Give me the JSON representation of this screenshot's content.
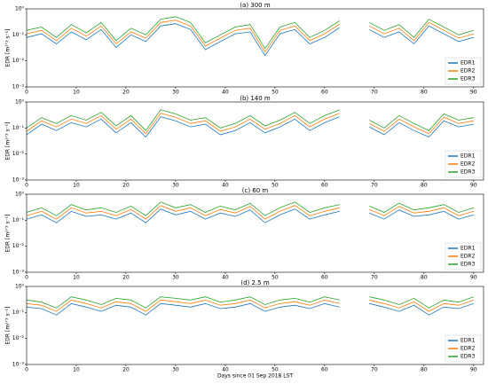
{
  "chart_data": [
    {
      "type": "line",
      "title": "(a) 300 m",
      "ylabel": "EDR [m²ᐟ³ s⁻¹]",
      "log_scale": true,
      "legend": "lower right",
      "xlim": [
        0,
        92
      ],
      "xticks": [
        0,
        10,
        20,
        30,
        40,
        50,
        60,
        70,
        80,
        90
      ],
      "ylim": [
        0.001,
        1
      ],
      "yticks": [
        {
          "value": 1,
          "label": "10⁰"
        },
        {
          "value": 0.1,
          "label": "10⁻¹"
        },
        {
          "value": 0.01,
          "label": "10⁻²"
        },
        {
          "value": 0.001,
          "label": "10⁻³"
        }
      ],
      "x": [
        0,
        3,
        6,
        9,
        12,
        15,
        18,
        21,
        24,
        27,
        30,
        33,
        36,
        39,
        42,
        45,
        48,
        51,
        54,
        57,
        60,
        63,
        66,
        69,
        72,
        75,
        78,
        81,
        84,
        87,
        90
      ],
      "series": [
        {
          "name": "EDR1",
          "color": "#1f77b4",
          "values": [
            0.08,
            0.11,
            0.045,
            0.13,
            0.065,
            0.16,
            0.033,
            0.1,
            0.055,
            0.22,
            0.27,
            0.16,
            0.027,
            0.055,
            0.11,
            0.13,
            0.016,
            0.11,
            0.16,
            0.045,
            0.08,
            0.19,
            null,
            0.16,
            0.08,
            0.13,
            0.045,
            0.22,
            0.11,
            0.055,
            0.08
          ]
        },
        {
          "name": "EDR2",
          "color": "#ff7f0e",
          "values": [
            0.11,
            0.15,
            0.06,
            0.18,
            0.09,
            0.22,
            0.045,
            0.13,
            0.075,
            0.3,
            0.37,
            0.22,
            0.037,
            0.075,
            0.15,
            0.18,
            0.022,
            0.15,
            0.22,
            0.06,
            0.11,
            0.26,
            null,
            0.22,
            0.11,
            0.18,
            0.06,
            0.3,
            0.15,
            0.075,
            0.11
          ]
        },
        {
          "name": "EDR3",
          "color": "#2ca02c",
          "values": [
            0.15,
            0.2,
            0.08,
            0.25,
            0.12,
            0.3,
            0.06,
            0.18,
            0.1,
            0.4,
            0.5,
            0.3,
            0.05,
            0.1,
            0.2,
            0.25,
            0.03,
            0.2,
            0.3,
            0.08,
            0.15,
            0.35,
            null,
            0.3,
            0.15,
            0.25,
            0.08,
            0.4,
            0.2,
            0.1,
            0.15
          ]
        }
      ]
    },
    {
      "type": "line",
      "title": "(b) 140 m",
      "ylabel": "EDR [m²ᐟ³ s⁻¹]",
      "log_scale": true,
      "legend": "lower right",
      "xlim": [
        0,
        92
      ],
      "xticks": [
        0,
        10,
        20,
        30,
        40,
        50,
        60,
        70,
        80,
        90
      ],
      "ylim": [
        0.001,
        1
      ],
      "yticks": [
        {
          "value": 1,
          "label": "10⁰"
        },
        {
          "value": 0.1,
          "label": "10⁻¹"
        },
        {
          "value": 0.01,
          "label": "10⁻²"
        },
        {
          "value": 0.001,
          "label": "10⁻³"
        }
      ],
      "x": [
        0,
        3,
        6,
        9,
        12,
        15,
        18,
        21,
        24,
        27,
        30,
        33,
        36,
        39,
        42,
        45,
        48,
        51,
        54,
        57,
        60,
        63,
        66,
        69,
        72,
        75,
        78,
        81,
        84,
        87,
        90
      ],
      "series": [
        {
          "name": "EDR1",
          "color": "#1f77b4",
          "values": [
            0.055,
            0.14,
            0.08,
            0.16,
            0.11,
            0.22,
            0.065,
            0.16,
            0.045,
            0.27,
            0.19,
            0.11,
            0.14,
            0.055,
            0.08,
            0.16,
            0.065,
            0.11,
            0.22,
            0.08,
            0.16,
            0.27,
            null,
            0.11,
            0.055,
            0.16,
            0.08,
            0.045,
            0.19,
            0.11,
            0.14
          ]
        },
        {
          "name": "EDR2",
          "color": "#ff7f0e",
          "values": [
            0.075,
            0.19,
            0.11,
            0.22,
            0.15,
            0.3,
            0.09,
            0.22,
            0.06,
            0.37,
            0.26,
            0.15,
            0.19,
            0.075,
            0.11,
            0.22,
            0.09,
            0.15,
            0.3,
            0.11,
            0.22,
            0.37,
            null,
            0.15,
            0.075,
            0.22,
            0.11,
            0.06,
            0.26,
            0.15,
            0.19
          ]
        },
        {
          "name": "EDR3",
          "color": "#2ca02c",
          "values": [
            0.1,
            0.25,
            0.15,
            0.3,
            0.2,
            0.4,
            0.12,
            0.3,
            0.08,
            0.5,
            0.35,
            0.2,
            0.25,
            0.1,
            0.15,
            0.3,
            0.12,
            0.2,
            0.4,
            0.15,
            0.3,
            0.5,
            null,
            0.2,
            0.1,
            0.3,
            0.15,
            0.08,
            0.35,
            0.2,
            0.25
          ]
        }
      ]
    },
    {
      "type": "line",
      "title": "(c) 60 m",
      "ylabel": "EDR [m²ᐟ³ s⁻¹]",
      "log_scale": true,
      "legend": "lower right",
      "xlim": [
        0,
        92
      ],
      "xticks": [
        0,
        10,
        20,
        30,
        40,
        50,
        60,
        70,
        80,
        90
      ],
      "ylim": [
        0.001,
        1
      ],
      "yticks": [
        {
          "value": 1,
          "label": "10⁰"
        },
        {
          "value": 0.1,
          "label": "10⁻¹"
        },
        {
          "value": 0.01,
          "label": "10⁻²"
        },
        {
          "value": 0.001,
          "label": "10⁻³"
        }
      ],
      "x": [
        0,
        3,
        6,
        9,
        12,
        15,
        18,
        21,
        24,
        27,
        30,
        33,
        36,
        39,
        42,
        45,
        48,
        51,
        54,
        57,
        60,
        63,
        66,
        69,
        72,
        75,
        78,
        81,
        84,
        87,
        90
      ],
      "series": [
        {
          "name": "EDR1",
          "color": "#1f77b4",
          "values": [
            0.11,
            0.16,
            0.08,
            0.22,
            0.14,
            0.16,
            0.11,
            0.19,
            0.08,
            0.27,
            0.16,
            0.22,
            0.11,
            0.19,
            0.14,
            0.25,
            0.08,
            0.16,
            0.27,
            0.11,
            0.16,
            0.22,
            null,
            0.19,
            0.11,
            0.25,
            0.14,
            0.16,
            0.22,
            0.11,
            0.16
          ]
        },
        {
          "name": "EDR2",
          "color": "#ff7f0e",
          "values": [
            0.15,
            0.22,
            0.11,
            0.3,
            0.19,
            0.22,
            0.15,
            0.26,
            0.11,
            0.37,
            0.22,
            0.3,
            0.15,
            0.26,
            0.19,
            0.34,
            0.11,
            0.22,
            0.37,
            0.15,
            0.22,
            0.3,
            null,
            0.26,
            0.15,
            0.34,
            0.19,
            0.22,
            0.3,
            0.15,
            0.22
          ]
        },
        {
          "name": "EDR3",
          "color": "#2ca02c",
          "values": [
            0.2,
            0.3,
            0.15,
            0.4,
            0.25,
            0.3,
            0.2,
            0.35,
            0.15,
            0.5,
            0.3,
            0.4,
            0.2,
            0.35,
            0.25,
            0.45,
            0.15,
            0.3,
            0.5,
            0.2,
            0.3,
            0.4,
            null,
            0.35,
            0.2,
            0.45,
            0.25,
            0.3,
            0.4,
            0.2,
            0.3
          ]
        }
      ]
    },
    {
      "type": "line",
      "title": "(d) 2.5 m",
      "ylabel": "EDR [m²ᐟ³ s⁻¹]",
      "xlabel": "Days since 01 Sep 2018 LST",
      "log_scale": true,
      "legend": "lower right",
      "xlim": [
        0,
        92
      ],
      "xticks": [
        0,
        10,
        20,
        30,
        40,
        50,
        60,
        70,
        80,
        90
      ],
      "ylim": [
        0.001,
        1
      ],
      "yticks": [
        {
          "value": 1,
          "label": "10⁰"
        },
        {
          "value": 0.1,
          "label": "10⁻¹"
        },
        {
          "value": 0.01,
          "label": "10⁻²"
        },
        {
          "value": 0.001,
          "label": "10⁻³"
        }
      ],
      "x": [
        0,
        3,
        6,
        9,
        12,
        15,
        18,
        21,
        24,
        27,
        30,
        33,
        36,
        39,
        42,
        45,
        48,
        51,
        54,
        57,
        60,
        63,
        66,
        69,
        72,
        75,
        78,
        81,
        84,
        87,
        90
      ],
      "series": [
        {
          "name": "EDR1",
          "color": "#1f77b4",
          "values": [
            0.16,
            0.14,
            0.08,
            0.22,
            0.16,
            0.11,
            0.19,
            0.16,
            0.08,
            0.22,
            0.19,
            0.16,
            0.22,
            0.14,
            0.16,
            0.22,
            0.11,
            0.16,
            0.19,
            0.14,
            0.22,
            0.16,
            null,
            0.22,
            0.16,
            0.11,
            0.19,
            0.08,
            0.16,
            0.14,
            0.22
          ]
        },
        {
          "name": "EDR2",
          "color": "#ff7f0e",
          "values": [
            0.22,
            0.19,
            0.11,
            0.3,
            0.22,
            0.15,
            0.26,
            0.22,
            0.11,
            0.3,
            0.26,
            0.22,
            0.3,
            0.19,
            0.22,
            0.3,
            0.15,
            0.22,
            0.26,
            0.19,
            0.3,
            0.22,
            null,
            0.3,
            0.22,
            0.15,
            0.26,
            0.11,
            0.22,
            0.19,
            0.3
          ]
        },
        {
          "name": "EDR3",
          "color": "#2ca02c",
          "values": [
            0.3,
            0.25,
            0.15,
            0.4,
            0.3,
            0.2,
            0.35,
            0.3,
            0.15,
            0.4,
            0.35,
            0.3,
            0.4,
            0.25,
            0.3,
            0.4,
            0.2,
            0.3,
            0.35,
            0.25,
            0.4,
            0.3,
            null,
            0.4,
            0.3,
            0.2,
            0.35,
            0.15,
            0.3,
            0.25,
            0.4
          ]
        }
      ]
    }
  ]
}
